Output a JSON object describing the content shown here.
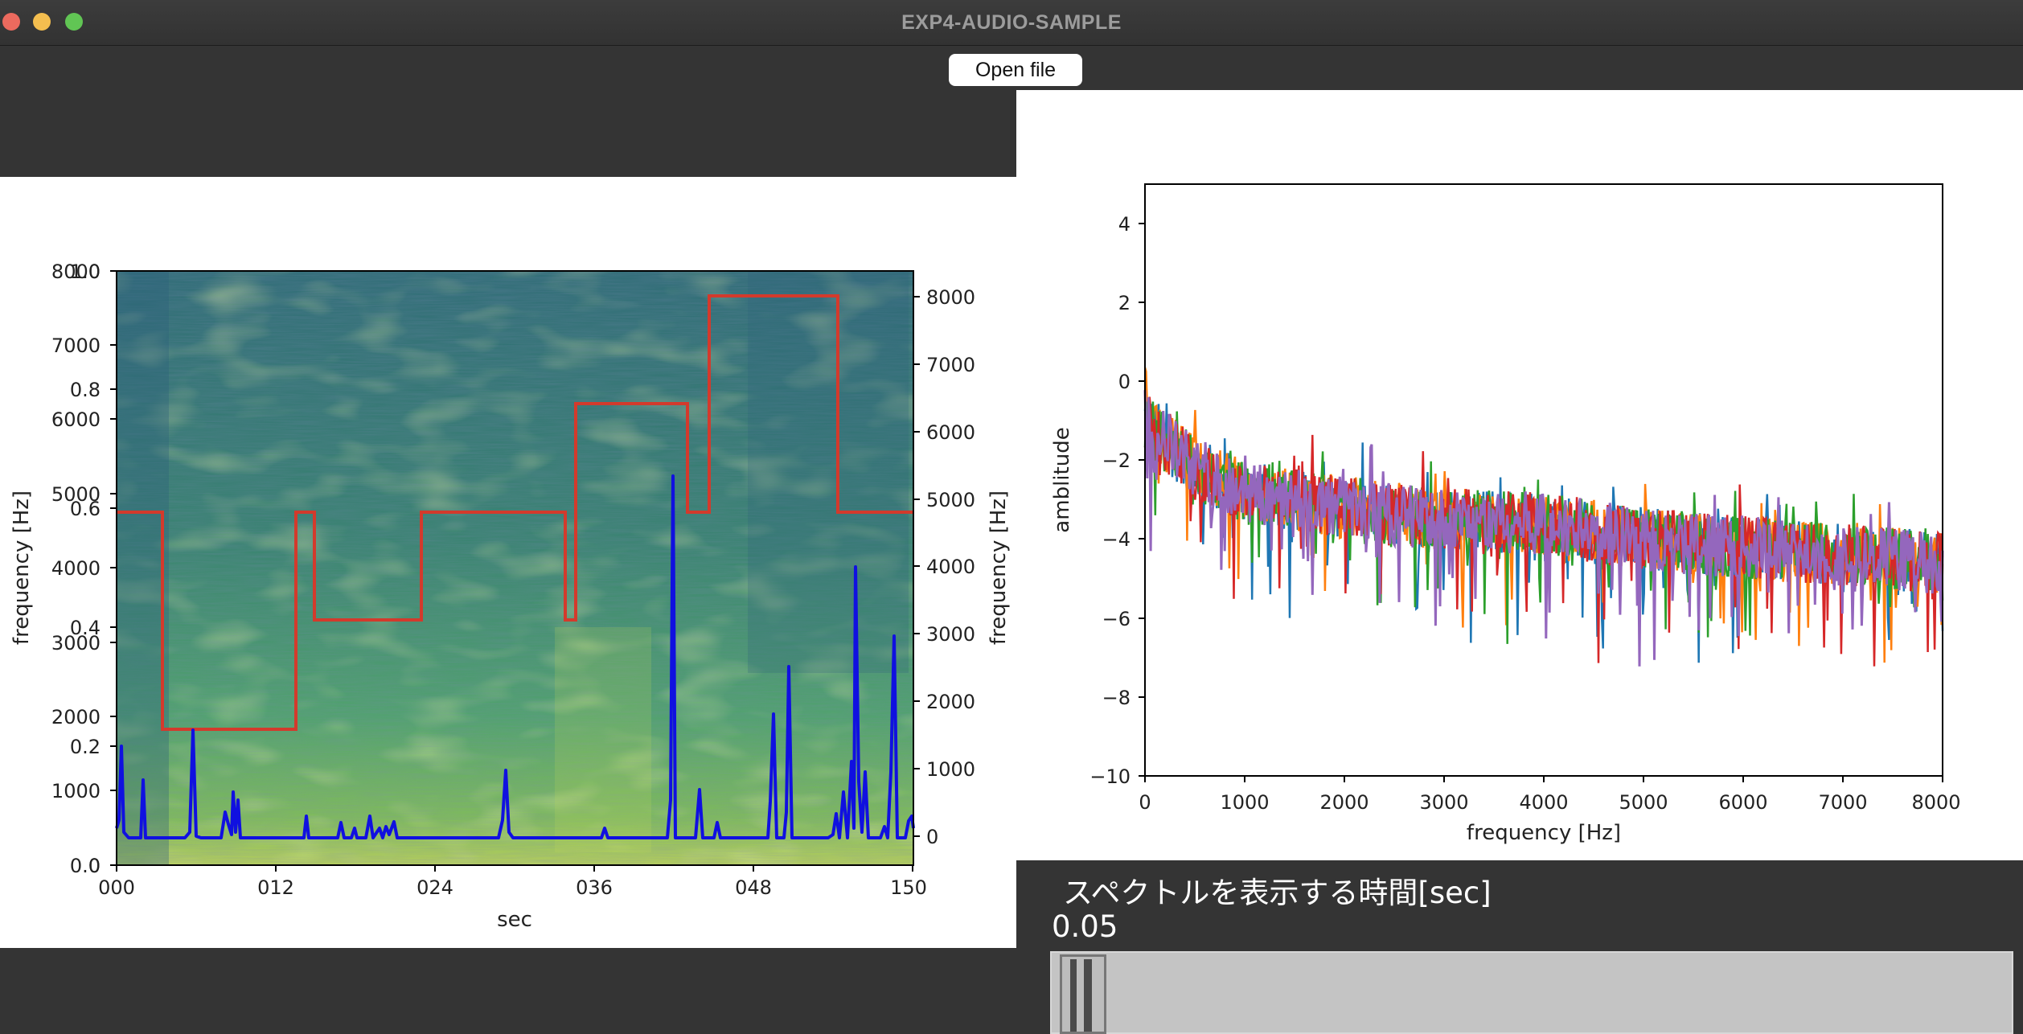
{
  "window": {
    "title": "EXP4-AUDIO-SAMPLE"
  },
  "toolbar": {
    "open_label": "Open file"
  },
  "spectrogram_plot": {
    "xlabel": "sec",
    "ylabel_left": "frequency [Hz]",
    "ylabel_right": "frequency [Hz]",
    "x_ticks": [
      "000",
      "012",
      "024",
      "036",
      "048",
      "150"
    ],
    "left_hz_ticks": [
      "8000",
      "7000",
      "6000",
      "5000",
      "4000",
      "3000",
      "2000",
      "1000",
      "0"
    ],
    "left_norm_ticks": [
      "1.0",
      "0.8",
      "0.6",
      "0.4",
      "0.2",
      "0.0"
    ],
    "right_ticks": [
      "8000",
      "7000",
      "6000",
      "5000",
      "4000",
      "3000",
      "2000",
      "1000",
      "0"
    ],
    "colors": {
      "pitch_line": "#d33a2c",
      "volume_line": "#1010e0"
    }
  },
  "spectrum_plot": {
    "xlabel": "frequency [Hz]",
    "ylabel": "amblitude",
    "x_ticks": [
      "0",
      "1000",
      "2000",
      "3000",
      "4000",
      "5000",
      "6000",
      "7000",
      "8000"
    ],
    "y_ticks": [
      "4",
      "2",
      "0",
      "−2",
      "−4",
      "−6",
      "−8",
      "−10"
    ],
    "series_colors": [
      "#1f77b4",
      "#ff7f0e",
      "#2ca02c",
      "#d62728",
      "#9467bd"
    ]
  },
  "chart_data": [
    {
      "type": "line",
      "title": "",
      "xlabel": "sec",
      "ylabel": "frequency [Hz]",
      "x_ticks": [
        "000",
        "012",
        "024",
        "036",
        "048",
        "150"
      ],
      "ylim": [
        0,
        8000
      ],
      "series": [
        {
          "x": [
            0.0,
            0.06,
            0.06,
            0.22,
            0.22,
            0.25,
            0.25,
            0.39,
            0.39,
            0.57,
            0.57,
            0.59,
            0.59,
            0.72,
            0.72,
            0.74,
            0.74,
            0.9,
            0.9,
            1.0
          ],
          "y": [
            4760,
            4760,
            1640,
            1640,
            4760,
            4760,
            3190,
            3190,
            4760,
            4760,
            3190,
            3190,
            6440,
            6440,
            4760,
            4760,
            8000,
            8000,
            4760,
            4760
          ]
        },
        {
          "x": [
            0.0,
            0.03,
            0.06,
            0.1,
            0.15,
            0.25,
            0.38,
            0.5,
            0.7,
            0.74,
            0.82,
            0.86,
            0.95,
            1.0
          ],
          "y": [
            100,
            1350,
            120,
            1600,
            1080,
            230,
            980,
            110,
            5300,
            980,
            1840,
            3800,
            3160,
            290
          ]
        }
      ],
      "grid": false
    },
    {
      "type": "line",
      "title": "",
      "xlabel": "frequency [Hz]",
      "ylabel": "amblitude",
      "xlim": [
        0,
        8000
      ],
      "ylim": [
        -10,
        5
      ],
      "x_ticks": [
        0,
        1000,
        2000,
        3000,
        4000,
        5000,
        6000,
        7000,
        8000
      ],
      "y_ticks": [
        4,
        2,
        0,
        -2,
        -4,
        -6,
        -8,
        -10
      ],
      "series": [
        {
          "x": [
            0,
            500,
            1000,
            2000,
            3000,
            4000,
            5000,
            6000,
            7000,
            8000
          ],
          "y": [
            -1.0,
            -2.2,
            -2.8,
            -3.2,
            -3.5,
            -3.6,
            -4.0,
            -4.2,
            -4.4,
            -4.6
          ]
        }
      ],
      "grid": false
    }
  ],
  "time_control": {
    "label": "スペクトルを表示する時間[sec]",
    "value": "0.05",
    "slider_fraction": 0.05
  }
}
